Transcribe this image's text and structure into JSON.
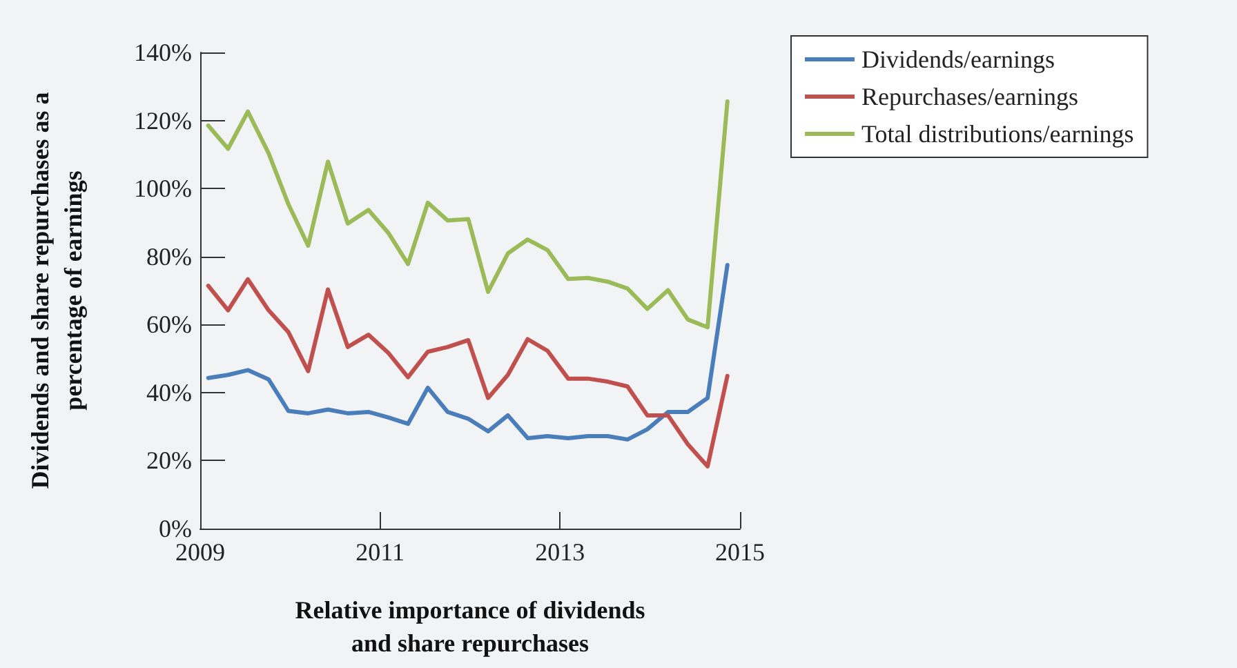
{
  "chart_data": {
    "type": "line",
    "xlabel": "Relative importance of dividends\nand share repurchases",
    "ylabel": "Dividends and share repurchases as a\npercentage of earnings",
    "x": [
      2009.09,
      2009.31,
      2009.53,
      2009.76,
      2009.98,
      2010.2,
      2010.42,
      2010.64,
      2010.87,
      2011.09,
      2011.31,
      2011.53,
      2011.75,
      2011.98,
      2012.2,
      2012.42,
      2012.64,
      2012.86,
      2013.09,
      2013.31,
      2013.53,
      2013.75,
      2013.97,
      2014.2,
      2014.42,
      2014.64,
      2014.86
    ],
    "series": [
      {
        "name": "Dividends/earnings",
        "color": "#4a7ebb",
        "values": [
          44.3,
          45.2,
          46.6,
          43.9,
          34.6,
          33.9,
          35.0,
          33.9,
          34.3,
          32.7,
          30.8,
          41.4,
          34.3,
          32.3,
          28.6,
          33.3,
          26.6,
          27.2,
          26.6,
          27.2,
          27.2,
          26.2,
          29.2,
          34.3,
          34.3,
          38.4,
          77.5
        ]
      },
      {
        "name": "Repurchases/earnings",
        "color": "#c0504d",
        "values": [
          71.4,
          64.2,
          73.3,
          64.2,
          57.8,
          46.3,
          70.3,
          53.4,
          57.0,
          51.7,
          44.5,
          52.0,
          53.4,
          55.4,
          38.4,
          45.2,
          55.7,
          52.3,
          44.1,
          44.1,
          43.2,
          41.8,
          33.3,
          33.3,
          24.8,
          18.3,
          44.9
        ]
      },
      {
        "name": "Total distributions/earnings",
        "color": "#9bbb59",
        "values": [
          118.5,
          111.7,
          122.6,
          110.4,
          95.4,
          83.2,
          107.9,
          89.7,
          93.7,
          87.0,
          77.8,
          95.8,
          90.6,
          91.0,
          69.6,
          80.9,
          85.0,
          81.9,
          73.4,
          73.7,
          72.6,
          70.6,
          64.6,
          70.1,
          61.5,
          59.2,
          125.6
        ]
      }
    ],
    "xlim": [
      2009,
      2015
    ],
    "xticks": [
      2009,
      2011,
      2013,
      2015
    ],
    "ylim": [
      0,
      140
    ],
    "yticks": [
      {
        "value": 0,
        "label": "0%"
      },
      {
        "value": 20,
        "label": "20%"
      },
      {
        "value": 40,
        "label": "40%"
      },
      {
        "value": 60,
        "label": "60%"
      },
      {
        "value": 80,
        "label": "80%"
      },
      {
        "value": 100,
        "label": "100%"
      },
      {
        "value": 120,
        "label": "120%"
      },
      {
        "value": 140,
        "label": "140%"
      }
    ],
    "grid": false,
    "legend": "top right",
    "marker": "none",
    "line_style": "solid"
  }
}
